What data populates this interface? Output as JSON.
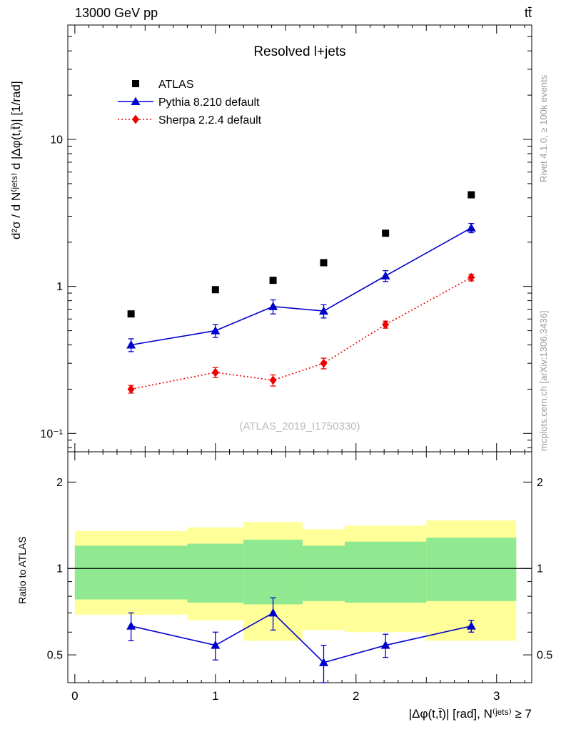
{
  "header": {
    "left": "13000 GeV pp",
    "right": "tt̄"
  },
  "side_notes": {
    "top": "Rivet 4.1.0, ≥ 100k events",
    "bottom": "mcplots.cern.ch [arXiv:1306.3436]"
  },
  "chart_data": {
    "type": "line",
    "title": "Resolved l+jets",
    "watermark": "(ATLAS_2019_I1750330)",
    "xlabel": "|Δφ(t,t̄)| [rad], N⁽ʲᵉᵗˢ⁾ ≥ 7",
    "ylabel": "d²σ / d N⁽ʲᵉᵗˢ⁾ d |Δφ(t,t̄)| [1/rad]",
    "ratio_ylabel": "Ratio to ATLAS",
    "legend_position": "top-left",
    "grid": false,
    "x": [
      0.4,
      1.0,
      1.41,
      1.77,
      2.21,
      2.82
    ],
    "series": [
      {
        "name": "ATLAS",
        "marker": "square",
        "color": "#000000",
        "line": "none",
        "values": [
          0.65,
          0.95,
          1.1,
          1.45,
          2.3,
          4.2
        ],
        "errors": [
          0,
          0,
          0,
          0,
          0,
          0
        ]
      },
      {
        "name": "Pythia 8.210 default",
        "marker": "triangle",
        "color": "#0000cc",
        "line": "solid",
        "values": [
          0.4,
          0.5,
          0.73,
          0.68,
          1.18,
          2.5
        ],
        "errors": [
          0.04,
          0.05,
          0.08,
          0.07,
          0.1,
          0.18
        ]
      },
      {
        "name": "Sherpa 2.2.4 default",
        "marker": "diamond",
        "color": "#ee0000",
        "line": "dotted",
        "values": [
          0.2,
          0.26,
          0.23,
          0.3,
          0.55,
          1.15
        ],
        "errors": [
          0.012,
          0.02,
          0.02,
          0.025,
          0.03,
          0.06
        ]
      }
    ],
    "ratio": {
      "series": {
        "name": "Pythia 8.210 default",
        "color": "#0000cc",
        "marker": "triangle",
        "values": [
          0.63,
          0.54,
          0.7,
          0.47,
          0.54,
          0.63
        ],
        "errors": [
          0.07,
          0.06,
          0.09,
          0.07,
          0.05,
          0.03
        ]
      },
      "reference_line": 1,
      "bands": {
        "bins": [
          [
            0,
            0.8
          ],
          [
            0.8,
            1.2
          ],
          [
            1.2,
            1.62
          ],
          [
            1.62,
            1.92
          ],
          [
            1.92,
            2.5
          ],
          [
            2.5,
            3.14
          ]
        ],
        "yellow": [
          [
            0.69,
            1.35
          ],
          [
            0.66,
            1.39
          ],
          [
            0.56,
            1.45
          ],
          [
            0.61,
            1.37
          ],
          [
            0.6,
            1.41
          ],
          [
            0.56,
            1.47
          ]
        ],
        "green": [
          [
            0.78,
            1.2
          ],
          [
            0.76,
            1.22
          ],
          [
            0.75,
            1.26
          ],
          [
            0.77,
            1.2
          ],
          [
            0.76,
            1.24
          ],
          [
            0.77,
            1.28
          ]
        ],
        "yellow_color": "#ffff99",
        "green_color": "#90e890"
      }
    },
    "axes": {
      "x": {
        "min": -0.05,
        "max": 3.25,
        "ticks": [
          0,
          1,
          2,
          3
        ],
        "tick_labels": [
          "0",
          "1",
          "2",
          "3"
        ]
      },
      "y_main": {
        "scale": "log",
        "min": 0.075,
        "max": 60,
        "tick_values": [
          0.1,
          1,
          10
        ],
        "tick_labels": [
          "10⁻¹",
          "1",
          "10"
        ]
      },
      "y_ratio": {
        "scale": "log",
        "min": 0.4,
        "max": 2.55,
        "tick_values": [
          0.5,
          1,
          2
        ],
        "tick_labels": [
          "0.5",
          "1",
          "2"
        ]
      }
    }
  }
}
